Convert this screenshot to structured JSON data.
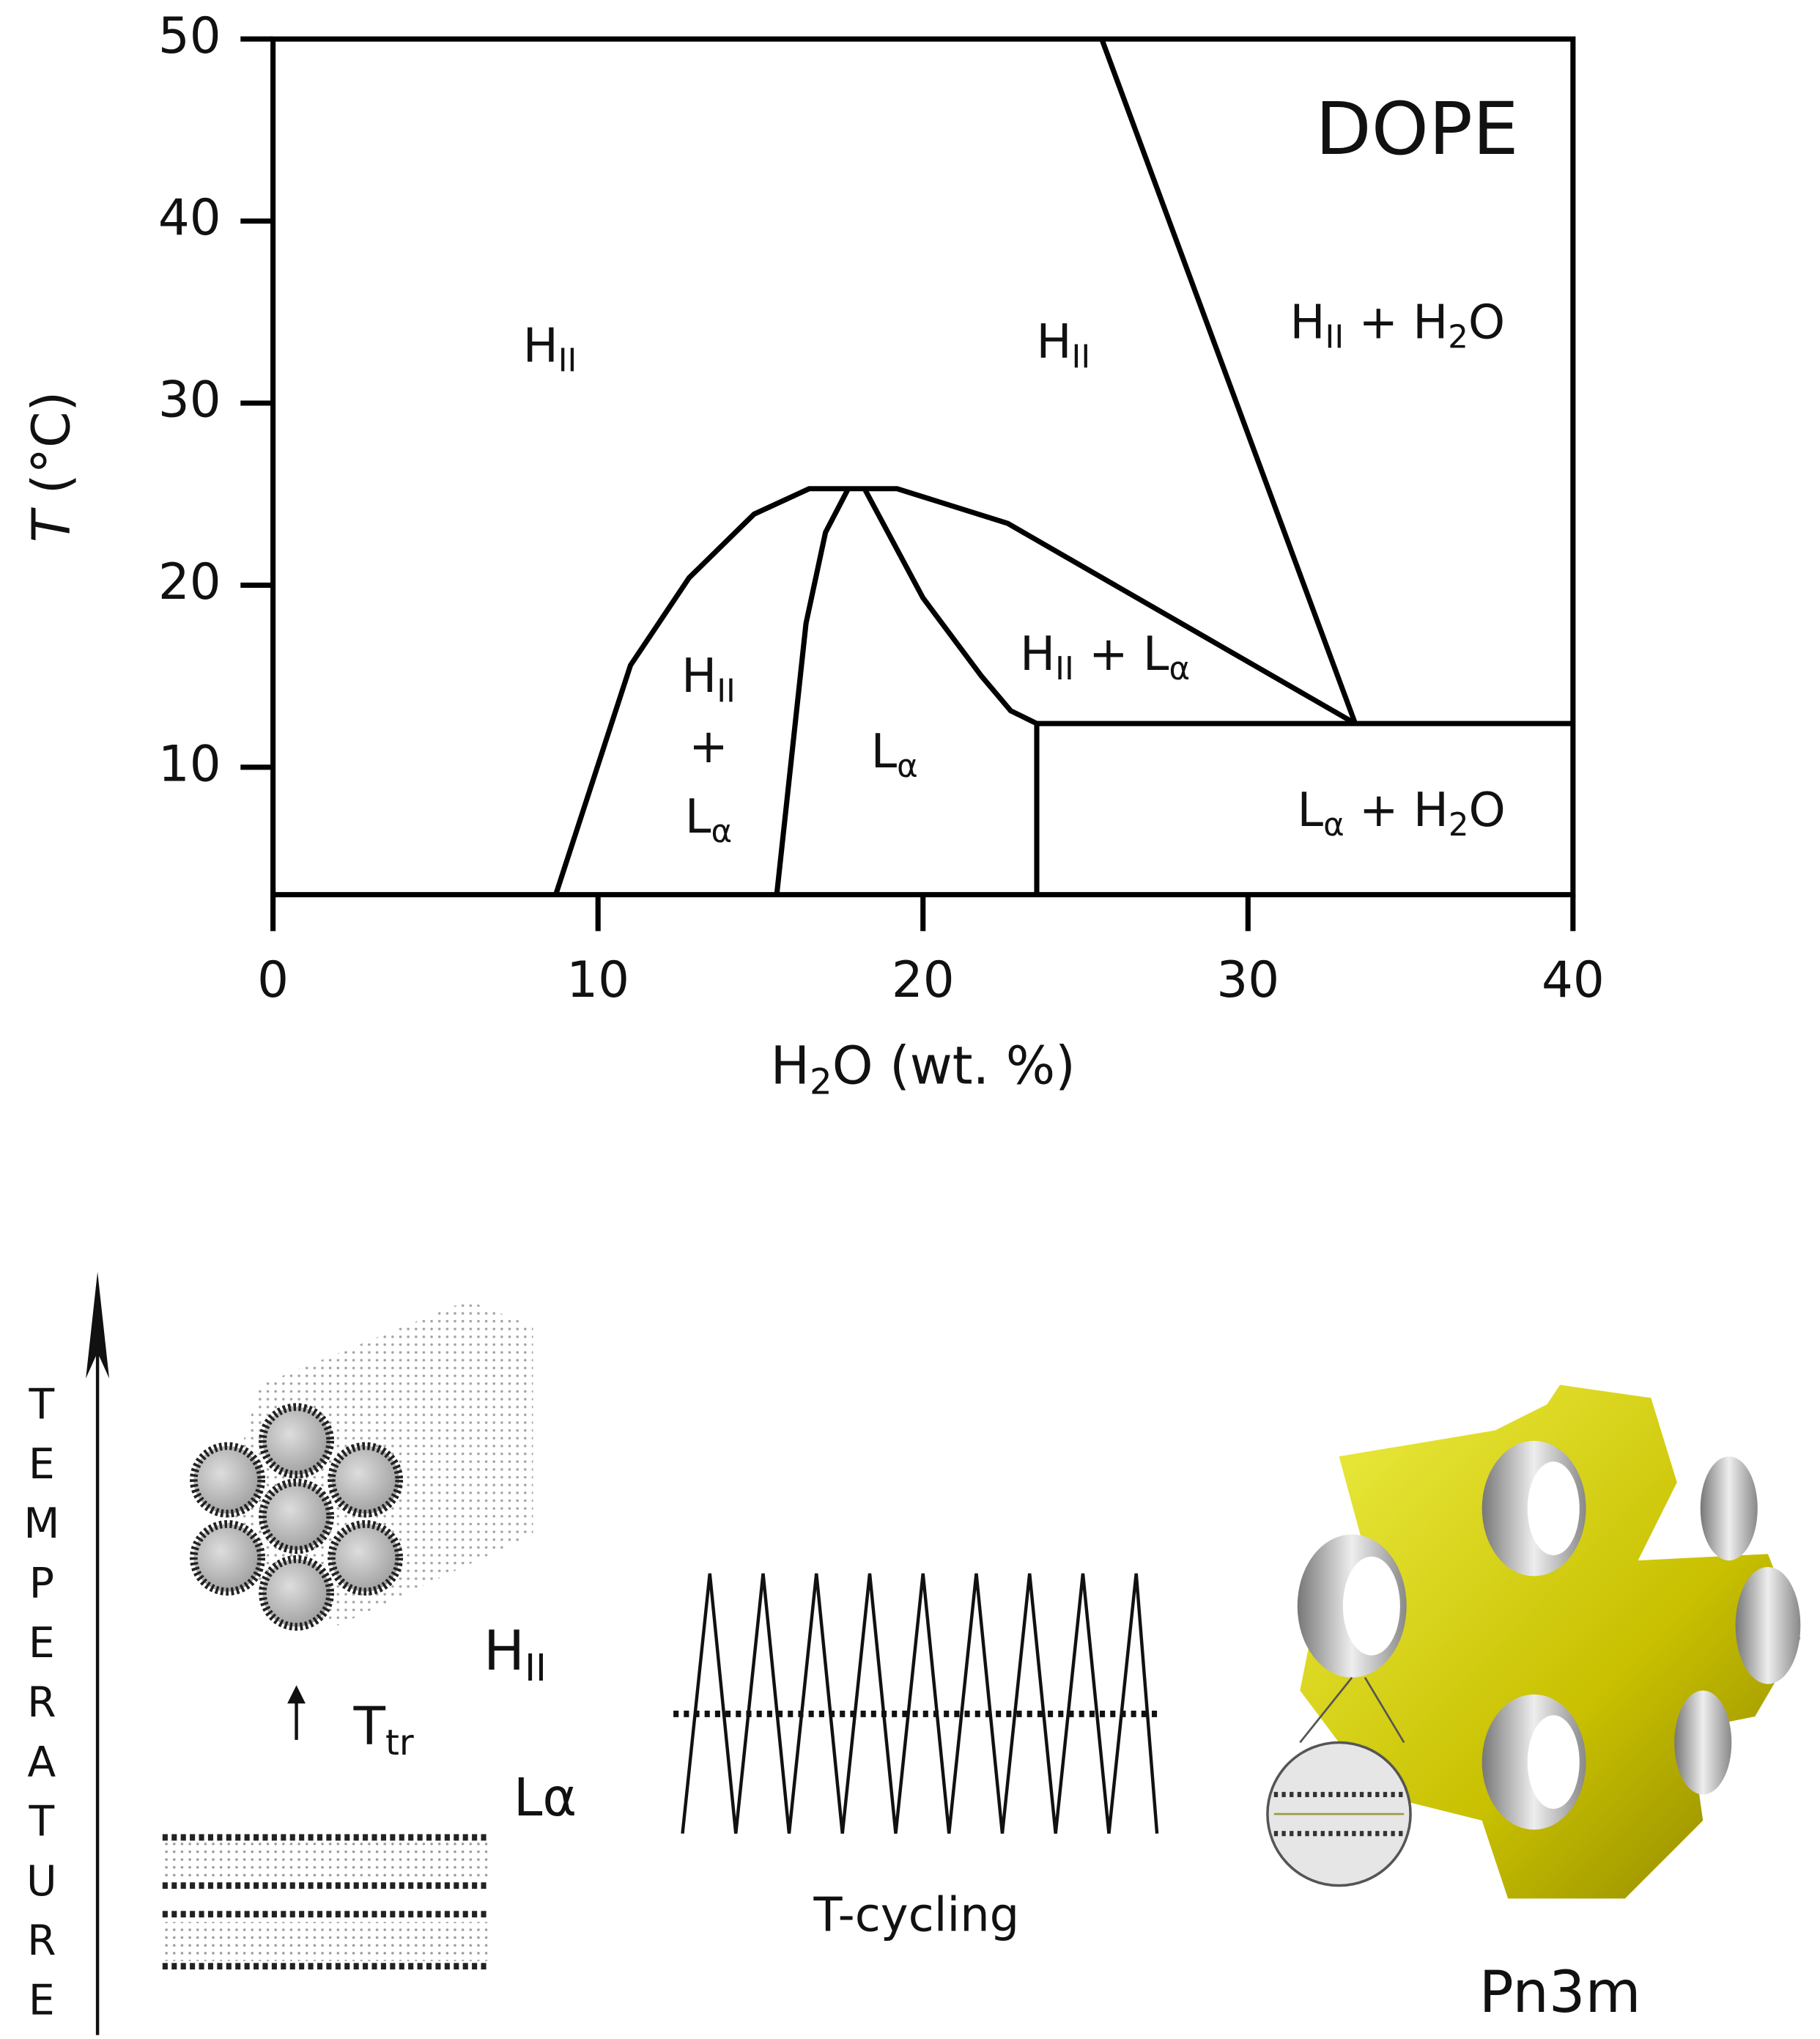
{
  "chart_data": {
    "type": "line",
    "title": "DOPE",
    "xlabel": [
      {
        "text": "H"
      },
      {
        "text": "2",
        "sub": true
      },
      {
        "text": "O (wt. %)"
      }
    ],
    "ylabel": [
      {
        "text": "T",
        "italic": true
      },
      {
        "text": " (°C)"
      }
    ],
    "xlim": [
      0,
      40
    ],
    "ylim": [
      3,
      50
    ],
    "xticks": [
      0,
      10,
      20,
      30,
      40
    ],
    "yticks": [
      10,
      20,
      30,
      40,
      50
    ],
    "grid": false,
    "series": [
      {
        "color": "#000000",
        "x": [
          8.7,
          11,
          12.8,
          14.8,
          16.5,
          19.2,
          22.6,
          33.3
        ],
        "values": [
          3,
          15.6,
          20.4,
          23.9,
          25.3,
          25.3,
          23.4,
          12.4
        ]
      },
      {
        "color": "#000000",
        "x": [
          15.5,
          16.4,
          17,
          17.7
        ],
        "values": [
          3,
          17.9,
          22.9,
          25.3
        ]
      },
      {
        "color": "#000000",
        "x": [
          18.2,
          20,
          21.8,
          22.7,
          23.5,
          23.5
        ],
        "values": [
          25.3,
          19.3,
          15,
          13.1,
          12.4,
          3
        ]
      },
      {
        "color": "#000000",
        "x": [
          23.5,
          40
        ],
        "values": [
          12.4,
          12.4
        ]
      },
      {
        "color": "#000000",
        "x": [
          25.5,
          33.3
        ],
        "values": [
          50,
          12.4
        ]
      }
    ],
    "annotations": [
      [
        [
          {
            "text": "H"
          },
          {
            "text": "II",
            "sub": true
          }
        ]
      ],
      [
        [
          {
            "text": "H"
          },
          {
            "text": "II",
            "sub": true
          }
        ]
      ],
      [
        [
          {
            "text": "H"
          },
          {
            "text": "II",
            "sub": true
          },
          {
            "text": " + H"
          },
          {
            "text": "2",
            "sub": true
          },
          {
            "text": "O"
          }
        ]
      ],
      [
        [
          {
            "text": "H"
          },
          {
            "text": "II",
            "sub": true
          }
        ],
        [
          {
            "text": "+"
          }
        ],
        [
          {
            "text": "L"
          },
          {
            "text": "α",
            "sub": true
          }
        ]
      ],
      [
        [
          {
            "text": "L"
          },
          {
            "text": "α",
            "sub": true
          }
        ]
      ],
      [
        [
          {
            "text": "H"
          },
          {
            "text": "II",
            "sub": true
          },
          {
            "text": " + L"
          },
          {
            "text": "α",
            "sub": true
          }
        ]
      ],
      [
        [
          {
            "text": "L"
          },
          {
            "text": "α",
            "sub": true
          },
          {
            "text": " + H"
          },
          {
            "text": "2",
            "sub": true
          },
          {
            "text": "O"
          }
        ]
      ]
    ]
  },
  "illustration": {
    "temperature_axis": "TEMPERATURE",
    "hexagonal_label": [
      {
        "text": "H"
      },
      {
        "text": "II",
        "sub": true
      }
    ],
    "transition_label": [
      {
        "text": "T"
      },
      {
        "text": "tr",
        "sub": true
      }
    ],
    "lamellar_label": "Lα",
    "cycling_label": "T-cycling",
    "cubic_label": "Pn3m"
  }
}
